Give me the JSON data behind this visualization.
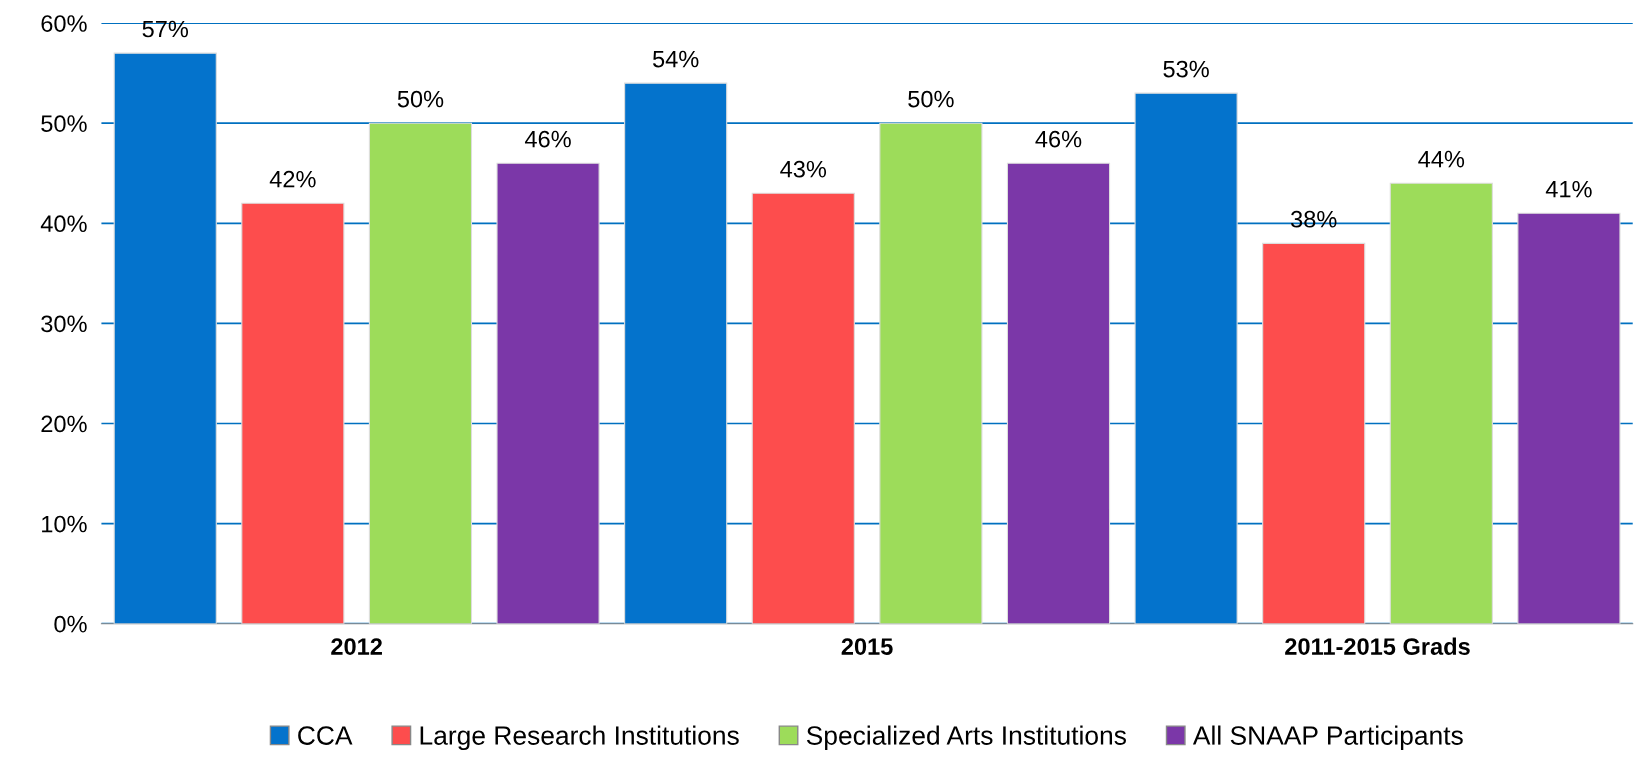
{
  "chart_data": {
    "type": "bar",
    "categories": [
      "2012",
      "2015",
      "2011-2015 Grads"
    ],
    "series": [
      {
        "name": "CCA",
        "color": "#0473cc",
        "values": [
          57,
          54,
          53
        ],
        "value_labels": [
          "57%",
          "54%",
          "53%"
        ]
      },
      {
        "name": "Large Research Institutions",
        "color": "#fd4d4d",
        "values": [
          42,
          43,
          38
        ],
        "value_labels": [
          "42%",
          "43%",
          "38%"
        ]
      },
      {
        "name": "Specialized Arts Institutions",
        "color": "#9ddc5a",
        "values": [
          50,
          50,
          44
        ],
        "value_labels": [
          "50%",
          "50%",
          "44%"
        ]
      },
      {
        "name": "All SNAAP Participants",
        "color": "#7b37a8",
        "values": [
          46,
          46,
          41
        ],
        "value_labels": [
          "46%",
          "46%",
          "41%"
        ]
      }
    ],
    "ylim": [
      0,
      60
    ],
    "yticks": [
      {
        "value": 0,
        "label": "0%"
      },
      {
        "value": 10,
        "label": "10%"
      },
      {
        "value": 20,
        "label": "20%"
      },
      {
        "value": 30,
        "label": "30%"
      },
      {
        "value": 40,
        "label": "40%"
      },
      {
        "value": 50,
        "label": "50%"
      },
      {
        "value": 60,
        "label": "60%"
      }
    ],
    "grid": "y",
    "legend": "bottom"
  }
}
